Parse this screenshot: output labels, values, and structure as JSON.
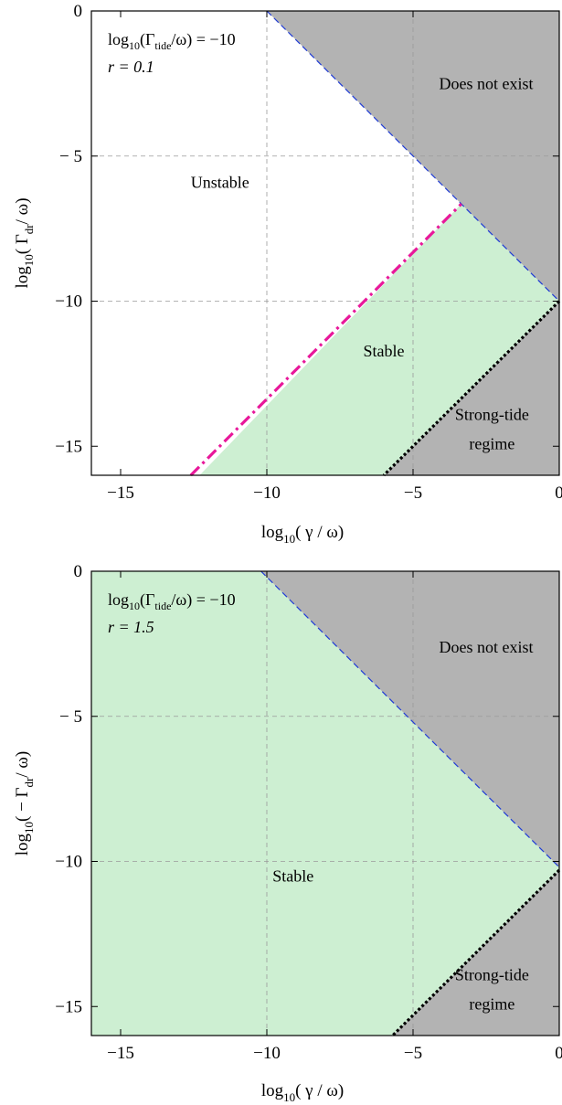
{
  "chart_data": [
    {
      "type": "area",
      "annotation": {
        "line1_pre": "log",
        "line1_sub": "10",
        "line1_mid": "(Γ",
        "line1_sub2": "tide",
        "line1_post": "/ω) = −10",
        "line2": "r = 0.1"
      },
      "xlabel": {
        "pre": "log",
        "sub": "10",
        "post": "( γ / ω)"
      },
      "ylabel": {
        "pre": "log",
        "sub": "10",
        "post": "( Γ",
        "sub2": "dr",
        "post2": "/ ω)"
      },
      "xlim": [
        -16,
        0
      ],
      "ylim": [
        -16,
        0
      ],
      "xticks": [
        -15,
        -10,
        -5,
        0
      ],
      "yticks": [
        0,
        -5,
        -10,
        -15
      ],
      "xtick_labels": [
        "−15",
        "−10",
        "−5",
        "0"
      ],
      "ytick_labels": [
        "0",
        "− 5",
        "−10",
        "−15"
      ],
      "grid": [
        -10,
        -5
      ],
      "regions": [
        {
          "label": "Does not exist",
          "polygon": [
            [
              -10,
              0
            ],
            [
              0,
              0
            ],
            [
              0,
              -10
            ]
          ],
          "color": "#b3b3b3"
        },
        {
          "label": "Strong-tide regime",
          "polygon": [
            [
              0,
              -10
            ],
            [
              0,
              -16
            ],
            [
              -6,
              -16
            ]
          ],
          "color": "#b3b3b3"
        },
        {
          "label": "Stable",
          "polygon": [
            [
              -12.3,
              -16
            ],
            [
              -3.35,
              -6.65
            ],
            [
              0,
              -10
            ],
            [
              -6,
              -16
            ]
          ],
          "color": "#cdefd2"
        }
      ],
      "region_labels": [
        {
          "text": "Does not exist",
          "x": -2.5,
          "y": -2.7
        },
        {
          "text": "Unstable",
          "x": -11.6,
          "y": -6.1
        },
        {
          "text": "Stable",
          "x": -6,
          "y": -11.9
        },
        {
          "text": "Strong-tide",
          "x": -2.3,
          "y": -14.1
        },
        {
          "text": "regime",
          "x": -2.3,
          "y": -15.1
        }
      ],
      "lines": [
        {
          "name": "existence boundary",
          "x": [
            -10,
            0
          ],
          "y": [
            0,
            -10
          ],
          "color": "#1f3bd6",
          "style": "dashed"
        },
        {
          "name": "strong-tide boundary",
          "x": [
            0,
            -6
          ],
          "y": [
            -10,
            -16
          ],
          "color": "#000000",
          "style": "dotted"
        },
        {
          "name": "stability boundary",
          "x": [
            -12.6,
            -3.35
          ],
          "y": [
            -16,
            -6.65
          ],
          "color": "#e8189a",
          "style": "dashdot"
        }
      ]
    },
    {
      "type": "area",
      "annotation": {
        "line1_pre": "log",
        "line1_sub": "10",
        "line1_mid": "(Γ",
        "line1_sub2": "tide",
        "line1_post": "/ω) = −10",
        "line2": "r = 1.5"
      },
      "xlabel": {
        "pre": "log",
        "sub": "10",
        "post": "( γ / ω)"
      },
      "ylabel": {
        "pre": "log",
        "sub": "10",
        "post": "( − Γ",
        "sub2": "dr",
        "post2": "/ ω)"
      },
      "xlim": [
        -16,
        0
      ],
      "ylim": [
        -16,
        0
      ],
      "xticks": [
        -15,
        -10,
        -5,
        0
      ],
      "yticks": [
        0,
        -5,
        -10,
        -15
      ],
      "xtick_labels": [
        "−15",
        "−10",
        "−5",
        "0"
      ],
      "ytick_labels": [
        "0",
        "− 5",
        "−10",
        "−15"
      ],
      "grid": [
        -10,
        -5
      ],
      "regions": [
        {
          "label": "Stable",
          "polygon": [
            [
              -16,
              0
            ],
            [
              -10.2,
              0
            ],
            [
              0,
              -10.2
            ],
            [
              0,
              -10.3
            ],
            [
              -5.7,
              -16
            ],
            [
              -16,
              -16
            ]
          ],
          "color": "#cdefd2"
        },
        {
          "label": "Does not exist",
          "polygon": [
            [
              -10.2,
              0
            ],
            [
              0,
              0
            ],
            [
              0,
              -10.2
            ]
          ],
          "color": "#b3b3b3"
        },
        {
          "label": "Strong-tide regime",
          "polygon": [
            [
              0,
              -10.3
            ],
            [
              0,
              -16
            ],
            [
              -5.7,
              -16
            ]
          ],
          "color": "#b3b3b3"
        }
      ],
      "region_labels": [
        {
          "text": "Does not exist",
          "x": -2.5,
          "y": -2.8
        },
        {
          "text": "Stable",
          "x": -9.1,
          "y": -10.7
        },
        {
          "text": "Strong-tide",
          "x": -2.3,
          "y": -14.1
        },
        {
          "text": "regime",
          "x": -2.3,
          "y": -15.1
        }
      ],
      "lines": [
        {
          "name": "existence boundary",
          "x": [
            -10.2,
            0
          ],
          "y": [
            0,
            -10.2
          ],
          "color": "#1f3bd6",
          "style": "dashed"
        },
        {
          "name": "strong-tide boundary",
          "x": [
            0,
            -5.7
          ],
          "y": [
            -10.3,
            -16
          ],
          "color": "#000000",
          "style": "dotted"
        }
      ]
    }
  ]
}
